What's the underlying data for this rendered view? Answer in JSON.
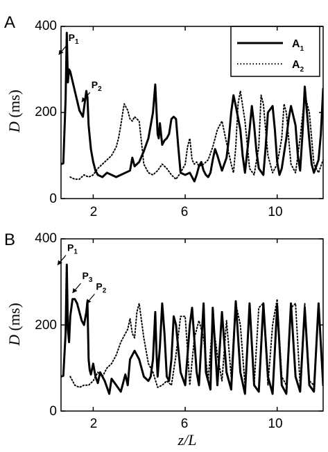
{
  "chart_data": [
    {
      "type": "line",
      "panel": "A",
      "xlabel": "",
      "ylabel": "D (ms)",
      "xlim": [
        0.6,
        12
      ],
      "ylim": [
        0,
        400
      ],
      "xticks": [
        2,
        6,
        10
      ],
      "yticks": [
        0,
        200,
        400
      ],
      "annotations": [
        {
          "text": "P",
          "sub": "1",
          "x": 0.8,
          "y": 360
        },
        {
          "text": "P",
          "sub": "2",
          "x": 1.8,
          "y": 250
        }
      ],
      "legend": {
        "placement": "top-right",
        "entries": [
          {
            "text": "A",
            "sub": "1",
            "style": "solid"
          },
          {
            "text": "A",
            "sub": "2",
            "style": "dotted"
          }
        ]
      },
      "series": [
        {
          "name": "A1",
          "style": "solid",
          "x": [
            0.6,
            0.7,
            0.8,
            0.85,
            0.9,
            0.95,
            1.0,
            1.2,
            1.4,
            1.55,
            1.7,
            1.75,
            1.8,
            1.9,
            2.0,
            2.1,
            2.2,
            2.4,
            2.6,
            2.8,
            3.0,
            3.2,
            3.4,
            3.6,
            3.7,
            3.8,
            4.0,
            4.2,
            4.4,
            4.6,
            4.7,
            4.8,
            4.85,
            4.9,
            5.0,
            5.1,
            5.2,
            5.3,
            5.4,
            5.5,
            5.6,
            5.7,
            5.8,
            6.0,
            6.2,
            6.4,
            6.5,
            6.6,
            6.7,
            6.8,
            6.9,
            7.0,
            7.1,
            7.2,
            7.3,
            7.4,
            7.6,
            7.8,
            7.9,
            8.0,
            8.1,
            8.2,
            8.4,
            8.5,
            8.6,
            8.8,
            8.9,
            9.0,
            9.1,
            9.2,
            9.4,
            9.5,
            9.6,
            9.8,
            9.9,
            10.0,
            10.1,
            10.2,
            10.4,
            10.5,
            10.6,
            10.8,
            10.9,
            11.0,
            11.1,
            11.2,
            11.4,
            11.5,
            11.6,
            11.8,
            11.9,
            12.0
          ],
          "y": [
            80,
            82,
            230,
            385,
            270,
            300,
            295,
            250,
            205,
            190,
            250,
            235,
            170,
            115,
            85,
            65,
            55,
            50,
            60,
            55,
            50,
            55,
            60,
            65,
            95,
            75,
            85,
            110,
            140,
            200,
            265,
            150,
            140,
            175,
            125,
            135,
            140,
            150,
            185,
            190,
            185,
            120,
            60,
            55,
            60,
            40,
            55,
            75,
            85,
            65,
            55,
            50,
            60,
            90,
            115,
            100,
            65,
            95,
            140,
            200,
            240,
            215,
            160,
            100,
            60,
            160,
            215,
            170,
            110,
            70,
            55,
            120,
            200,
            215,
            160,
            85,
            55,
            70,
            140,
            185,
            215,
            170,
            100,
            65,
            150,
            260,
            135,
            80,
            60,
            90,
            150,
            255
          ]
        },
        {
          "name": "A2",
          "style": "dotted",
          "x": [
            1.0,
            1.2,
            1.4,
            1.6,
            1.8,
            2.0,
            2.2,
            2.4,
            2.6,
            2.8,
            3.0,
            3.1,
            3.2,
            3.3,
            3.35,
            3.4,
            3.5,
            3.6,
            3.7,
            3.8,
            3.9,
            4.0,
            4.1,
            4.2,
            4.4,
            4.6,
            4.8,
            5.0,
            5.2,
            5.4,
            5.6,
            5.8,
            6.0,
            6.1,
            6.2,
            6.3,
            6.4,
            6.5,
            6.6,
            6.8,
            7.0,
            7.2,
            7.4,
            7.6,
            7.8,
            8.0,
            8.1,
            8.2,
            8.3,
            8.4,
            8.6,
            8.8,
            9.0,
            9.2,
            9.3,
            9.4,
            9.6,
            9.8,
            10.0,
            10.2,
            10.3,
            10.4,
            10.6,
            10.8,
            11.0,
            11.2,
            11.4,
            11.6,
            11.8,
            12.0
          ],
          "y": [
            50,
            45,
            45,
            55,
            50,
            55,
            70,
            80,
            90,
            100,
            120,
            140,
            170,
            205,
            220,
            215,
            205,
            185,
            180,
            190,
            185,
            180,
            130,
            80,
            60,
            55,
            65,
            80,
            70,
            55,
            45,
            60,
            80,
            120,
            140,
            90,
            80,
            85,
            75,
            80,
            90,
            120,
            160,
            180,
            130,
            80,
            60,
            120,
            220,
            250,
            180,
            70,
            55,
            120,
            240,
            220,
            100,
            60,
            80,
            140,
            220,
            200,
            80,
            60,
            140,
            240,
            200,
            80,
            60,
            90
          ]
        }
      ]
    },
    {
      "type": "line",
      "panel": "B",
      "xlabel": "z/L",
      "ylabel": "D (ms)",
      "xlim": [
        0.6,
        12
      ],
      "ylim": [
        0,
        400
      ],
      "xticks": [
        2,
        6,
        10
      ],
      "yticks": [
        0,
        200,
        400
      ],
      "annotations": [
        {
          "text": "P",
          "sub": "1",
          "x": 0.75,
          "y": 365
        },
        {
          "text": "P",
          "sub": "3",
          "x": 1.4,
          "y": 300
        },
        {
          "text": "P",
          "sub": "2",
          "x": 2.0,
          "y": 275
        }
      ],
      "series": [
        {
          "name": "A1",
          "style": "solid",
          "x": [
            0.6,
            0.7,
            0.8,
            0.85,
            0.9,
            0.95,
            1.0,
            1.1,
            1.2,
            1.3,
            1.4,
            1.5,
            1.6,
            1.7,
            1.75,
            1.8,
            1.85,
            1.9,
            2.0,
            2.1,
            2.2,
            2.3,
            2.5,
            2.7,
            2.8,
            3.0,
            3.2,
            3.4,
            3.5,
            3.6,
            3.8,
            4.0,
            4.2,
            4.4,
            4.5,
            4.6,
            4.7,
            4.75,
            4.8,
            4.9,
            5.0,
            5.1,
            5.2,
            5.3,
            5.4,
            5.5,
            5.6,
            5.8,
            6.0,
            6.2,
            6.3,
            6.5,
            6.6,
            6.8,
            6.9,
            7.1,
            7.2,
            7.4,
            7.6,
            7.8,
            8.0,
            8.2,
            8.4,
            8.6,
            8.8,
            9.0,
            9.2,
            9.4,
            9.6,
            9.8,
            10.0,
            10.2,
            10.4,
            10.6,
            10.8,
            11.0,
            11.2,
            11.4,
            11.6,
            11.8,
            12.0
          ],
          "y": [
            80,
            82,
            180,
            340,
            190,
            160,
            220,
            260,
            260,
            250,
            230,
            210,
            200,
            230,
            255,
            120,
            95,
            85,
            110,
            80,
            65,
            90,
            70,
            40,
            75,
            60,
            45,
            85,
            60,
            120,
            140,
            120,
            80,
            70,
            80,
            120,
            230,
            140,
            80,
            150,
            250,
            180,
            80,
            70,
            120,
            220,
            200,
            90,
            60,
            200,
            240,
            90,
            60,
            250,
            90,
            50,
            240,
            60,
            230,
            90,
            50,
            255,
            90,
            40,
            250,
            60,
            45,
            250,
            80,
            40,
            245,
            60,
            40,
            250,
            80,
            45,
            240,
            60,
            45,
            250,
            60
          ]
        },
        {
          "name": "A2",
          "style": "dotted",
          "x": [
            1.0,
            1.2,
            1.4,
            1.6,
            1.8,
            2.0,
            2.2,
            2.4,
            2.6,
            2.8,
            3.0,
            3.2,
            3.4,
            3.5,
            3.6,
            3.7,
            3.8,
            3.9,
            4.0,
            4.2,
            4.4,
            4.6,
            4.8,
            5.0,
            5.2,
            5.4,
            5.6,
            5.8,
            6.0,
            6.2,
            6.4,
            6.6,
            6.8,
            7.0,
            7.2,
            7.4,
            7.6,
            7.8,
            8.0,
            8.2,
            8.4,
            8.6,
            8.8,
            9.0,
            9.2,
            9.4,
            9.6,
            9.8,
            10.0,
            10.2,
            10.4,
            10.6,
            10.8,
            11.0,
            11.2,
            11.4,
            11.6,
            11.8,
            12.0
          ],
          "y": [
            80,
            60,
            55,
            60,
            60,
            70,
            90,
            80,
            100,
            110,
            130,
            160,
            180,
            190,
            215,
            180,
            170,
            230,
            250,
            170,
            110,
            90,
            55,
            60,
            70,
            60,
            130,
            220,
            220,
            60,
            170,
            210,
            170,
            70,
            210,
            130,
            70,
            210,
            80,
            250,
            200,
            60,
            240,
            60,
            240,
            250,
            60,
            200,
            260,
            80,
            60,
            240,
            250,
            60,
            250,
            70,
            60,
            245,
            60
          ]
        }
      ]
    }
  ],
  "panels": [
    {
      "letter": "A",
      "yticks": [
        "0",
        "200",
        "400"
      ],
      "xticks": [
        "2",
        "6",
        "10"
      ]
    },
    {
      "letter": "B",
      "yticks": [
        "0",
        "200",
        "400"
      ],
      "xticks": [
        "2",
        "6",
        "10"
      ]
    }
  ],
  "labels": {
    "y_italic": "D",
    "y_units": " (ms)",
    "x_label": "z/L"
  },
  "colors": {
    "line": "#000000",
    "frame": "#000000",
    "background": "#ffffff"
  }
}
